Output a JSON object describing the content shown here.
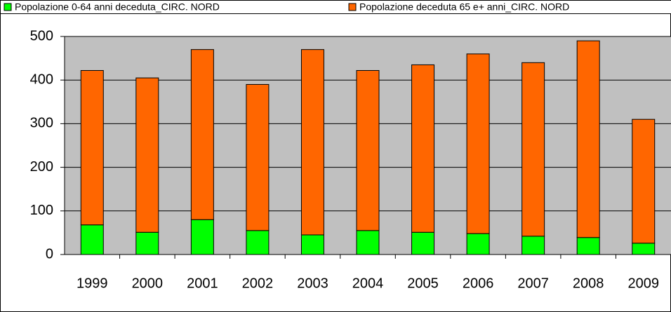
{
  "chart_data": {
    "type": "stacked_bar",
    "categories": [
      "1999",
      "2000",
      "2001",
      "2002",
      "2003",
      "2004",
      "2005",
      "2006",
      "2007",
      "2008",
      "2009"
    ],
    "series": [
      {
        "name": "Popolazione 0-64 anni deceduta_CIRC. NORD",
        "color": "#00ff00",
        "values": [
          68,
          51,
          80,
          55,
          45,
          55,
          51,
          48,
          42,
          39,
          26
        ]
      },
      {
        "name": "Popolazione deceduta 65 e+ anni_CIRC. NORD",
        "color": "#ff6600",
        "values": [
          354,
          354,
          390,
          335,
          425,
          367,
          384,
          412,
          398,
          451,
          284
        ]
      }
    ],
    "ylim": [
      0,
      500
    ],
    "yticks": [
      0,
      100,
      200,
      300,
      400,
      500
    ],
    "grid": true,
    "legend": "top",
    "plot_background": "#c0c0c0"
  }
}
